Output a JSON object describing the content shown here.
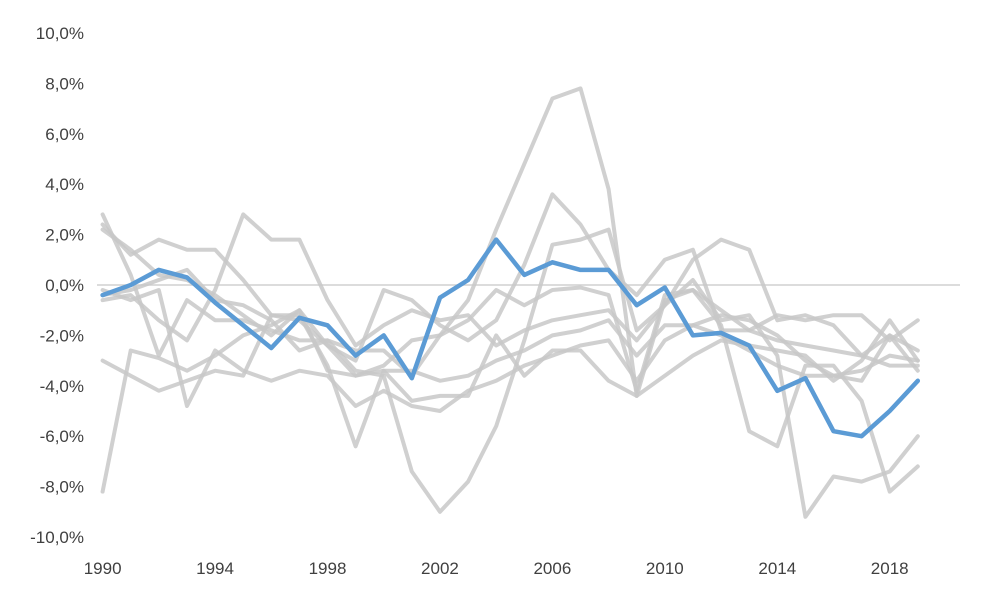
{
  "chart_data": {
    "type": "line",
    "title": "",
    "xlabel": "",
    "ylabel": "",
    "x": [
      1990,
      1991,
      1992,
      1993,
      1994,
      1995,
      1996,
      1997,
      1998,
      1999,
      2000,
      2001,
      2002,
      2003,
      2004,
      2005,
      2006,
      2007,
      2008,
      2009,
      2010,
      2011,
      2012,
      2013,
      2014,
      2015,
      2016,
      2017,
      2018,
      2019
    ],
    "xlim": [
      1989.8,
      2020.5
    ],
    "ylim": [
      -10,
      10
    ],
    "x_ticks": [
      1990,
      1994,
      1998,
      2002,
      2006,
      2010,
      2014,
      2018
    ],
    "x_tick_labels": [
      "1990",
      "1994",
      "1998",
      "2002",
      "2006",
      "2010",
      "2014",
      "2018"
    ],
    "y_ticks": [
      10,
      8,
      6,
      4,
      2,
      0,
      -2,
      -4,
      -6,
      -8,
      -10
    ],
    "y_tick_labels": [
      "10,0%",
      "8,0%",
      "6,0%",
      "4,0%",
      "2,0%",
      "0,0%",
      "-2,0%",
      "-4,0%",
      "-6,0%",
      "-8,0%",
      "-10,0%"
    ],
    "grid": false,
    "zero_line": true,
    "legend": "none",
    "colors": {
      "highlight": "#5b9bd5",
      "background_series": "#c8c8c8",
      "zero_line": "#d0d0d0",
      "tick_text": "#404040"
    },
    "series": [
      {
        "highlight": false,
        "values": [
          -8.2,
          -2.6,
          -2.9,
          -3.4,
          -2.8,
          -2.0,
          -1.6,
          -1.0,
          -2.4,
          -3.6,
          -3.2,
          -2.2,
          -2.0,
          -1.4,
          -0.2,
          -0.8,
          -0.2,
          -0.1,
          -0.4,
          -4.2,
          -0.4,
          -0.2,
          -1.0,
          -1.8,
          -2.2,
          -2.4,
          -2.6,
          -2.8,
          -2.0,
          -3.4
        ]
      },
      {
        "highlight": false,
        "values": [
          2.8,
          0.4,
          -2.8,
          -0.6,
          -1.4,
          -1.4,
          -1.8,
          -2.2,
          -2.2,
          -3.4,
          -3.6,
          -7.4,
          -9.0,
          -7.8,
          -5.6,
          -2.2,
          1.6,
          1.8,
          2.2,
          -1.8,
          -0.8,
          0.2,
          -1.4,
          -1.2,
          -2.8,
          -9.2,
          -7.6,
          -7.8,
          -7.4,
          -6.0
        ]
      },
      {
        "highlight": false,
        "values": [
          -3.0,
          -3.6,
          -4.2,
          -3.8,
          -3.4,
          -3.6,
          -1.2,
          -1.2,
          -3.2,
          -6.4,
          -3.4,
          -4.6,
          -4.4,
          -4.4,
          -2.0,
          -3.6,
          -2.6,
          -2.6,
          -3.8,
          -4.4,
          -0.6,
          -0.2,
          -1.6,
          -5.8,
          -6.4,
          -3.2,
          -3.2,
          -4.6,
          -8.2,
          -7.2
        ]
      },
      {
        "highlight": false,
        "values": [
          2.4,
          1.2,
          1.8,
          1.4,
          1.4,
          0.2,
          -1.2,
          -1.4,
          -2.4,
          -3.0,
          -0.2,
          -0.6,
          -1.6,
          -2.2,
          -1.4,
          0.8,
          3.6,
          2.4,
          0.6,
          -0.4,
          1.0,
          1.4,
          -1.8,
          -1.8,
          -1.2,
          -1.4,
          -1.2,
          -1.2,
          -2.2,
          -1.4
        ]
      },
      {
        "highlight": false,
        "values": [
          -0.4,
          -0.2,
          0.2,
          0.6,
          -0.6,
          -0.8,
          -1.4,
          -2.6,
          -2.2,
          -2.6,
          -2.6,
          -3.6,
          -2.0,
          -0.6,
          2.2,
          4.8,
          7.4,
          7.8,
          3.8,
          -4.4,
          -3.6,
          -2.8,
          -2.2,
          -2.4,
          -2.6,
          -2.8,
          -3.8,
          -3.0,
          -1.4,
          -3.0
        ]
      },
      {
        "highlight": false,
        "values": [
          2.2,
          1.4,
          0.4,
          0.2,
          -0.4,
          -1.2,
          -2.0,
          -1.0,
          -3.4,
          -3.6,
          -3.4,
          -3.4,
          -3.8,
          -3.6,
          -3.0,
          -2.6,
          -2.0,
          -1.8,
          -1.4,
          -2.8,
          -1.6,
          -1.6,
          -2.0,
          -2.6,
          -3.2,
          -3.6,
          -3.6,
          -3.4,
          -2.8,
          -3.0
        ]
      },
      {
        "highlight": false,
        "values": [
          -0.6,
          -0.4,
          -1.4,
          -2.2,
          -0.2,
          2.8,
          1.8,
          1.8,
          -0.6,
          -2.4,
          -1.6,
          -1.0,
          -1.4,
          -1.2,
          -2.4,
          -1.8,
          -1.4,
          -1.2,
          -1.0,
          -2.2,
          -0.8,
          1.0,
          1.8,
          1.4,
          -1.4,
          -1.2,
          -1.6,
          -2.8,
          -3.2,
          -3.2
        ]
      },
      {
        "highlight": false,
        "values": [
          -0.2,
          -0.6,
          -0.2,
          -4.8,
          -2.6,
          -3.4,
          -3.8,
          -3.4,
          -3.6,
          -4.8,
          -4.2,
          -4.8,
          -5.0,
          -4.2,
          -3.8,
          -3.2,
          -2.8,
          -2.4,
          -2.2,
          -3.8,
          -2.2,
          -1.6,
          -1.2,
          -1.4,
          -2.0,
          -3.0,
          -3.6,
          -3.8,
          -2.0,
          -2.6
        ]
      },
      {
        "highlight": true,
        "values": [
          -0.4,
          0.0,
          0.6,
          0.3,
          -0.7,
          -1.6,
          -2.5,
          -1.3,
          -1.6,
          -2.8,
          -2.0,
          -3.7,
          -0.5,
          0.2,
          1.8,
          0.4,
          0.9,
          0.6,
          0.6,
          -0.8,
          -0.1,
          -2.0,
          -1.9,
          -2.4,
          -4.2,
          -3.7,
          -5.8,
          -6.0,
          -5.0,
          -3.8
        ]
      }
    ]
  }
}
